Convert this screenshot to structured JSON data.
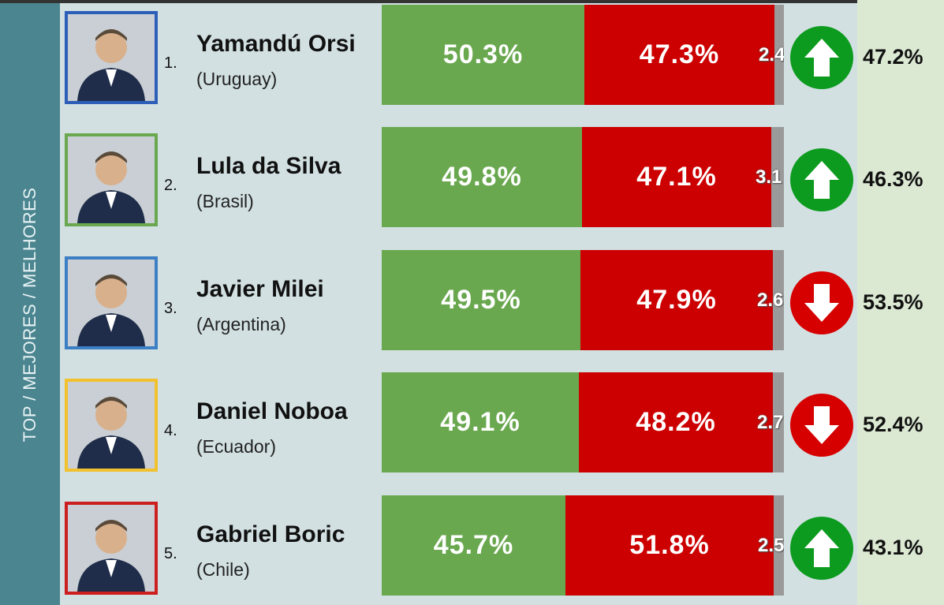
{
  "sidebar_label": "TOP / MEJORES / MELHORES",
  "colors": {
    "approve": "#6aa84f",
    "disapprove": "#cc0000",
    "other": "#9a9a9a",
    "up": "#0c9b1e",
    "down": "#d60000"
  },
  "chart_data": {
    "type": "bar",
    "stacked": true,
    "orientation": "horizontal",
    "categories": [
      "Yamandú Orsi",
      "Lula da Silva",
      "Javier Milei",
      "Daniel Noboa",
      "Gabriel Boric"
    ],
    "series": [
      {
        "values": [
          50.3,
          49.8,
          49.5,
          49.1,
          45.7
        ]
      },
      {
        "values": [
          47.3,
          47.1,
          47.9,
          48.2,
          51.8
        ]
      },
      {
        "values": [
          2.4,
          3.1,
          2.6,
          2.7,
          2.5
        ]
      }
    ],
    "trend": [
      {
        "direction": "up",
        "value": "47.2%"
      },
      {
        "direction": "up",
        "value": "46.3%"
      },
      {
        "direction": "down",
        "value": "53.5%"
      },
      {
        "direction": "down",
        "value": "52.4%"
      },
      {
        "direction": "up",
        "value": "43.1%"
      }
    ]
  },
  "rows": [
    {
      "rank": "1.",
      "name": "Yamandú Orsi",
      "country": "(Uruguay)",
      "approve_label": "50.3%",
      "disapprove_label": "47.3%",
      "other_label": "2.4",
      "frame_color": "#2d5fb8",
      "icon": "person-photo-icon"
    },
    {
      "rank": "2.",
      "name": "Lula da Silva",
      "country": "(Brasil)",
      "approve_label": "49.8%",
      "disapprove_label": "47.1%",
      "other_label": "3.1",
      "frame_color": "#6aa84f",
      "icon": "person-photo-icon"
    },
    {
      "rank": "3.",
      "name": "Javier Milei",
      "country": "(Argentina)",
      "approve_label": "49.5%",
      "disapprove_label": "47.9%",
      "other_label": "2.6",
      "frame_color": "#3d7fc4",
      "icon": "person-photo-icon"
    },
    {
      "rank": "4.",
      "name": "Daniel Noboa",
      "country": "(Ecuador)",
      "approve_label": "49.1%",
      "disapprove_label": "48.2%",
      "other_label": "2.7",
      "frame_color": "#f2c12e",
      "icon": "person-photo-icon"
    },
    {
      "rank": "5.",
      "name": "Gabriel Boric",
      "country": "(Chile)",
      "approve_label": "45.7%",
      "disapprove_label": "51.8%",
      "other_label": "2.5",
      "frame_color": "#cc1f1f",
      "icon": "person-photo-icon"
    }
  ]
}
